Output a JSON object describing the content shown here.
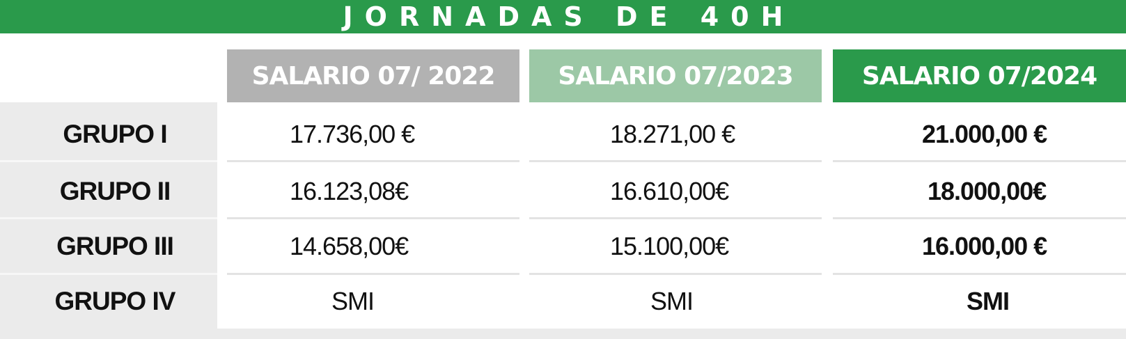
{
  "title": "JORNADAS DE 40H",
  "colors": {
    "green": "#2a9a4b",
    "light_green": "#9cc8a6",
    "gray_header": "#b2b2b2",
    "row_label_bg": "#ebebeb"
  },
  "headers": [
    "SALARIO 07/ 2022",
    "SALARIO 07/2023",
    "SALARIO 07/2024"
  ],
  "rows": [
    {
      "label": "GRUPO I",
      "values": [
        "17.736,00 €",
        "18.271,00 €",
        "21.000,00 €"
      ]
    },
    {
      "label": "GRUPO II",
      "values": [
        "16.123,08€",
        "16.610,00€",
        "18.000,00€"
      ]
    },
    {
      "label": "GRUPO III",
      "values": [
        "14.658,00€",
        "15.100,00€",
        "16.000,00 €"
      ]
    },
    {
      "label": "GRUPO IV",
      "values": [
        "SMI",
        "SMI",
        "SMI"
      ]
    }
  ]
}
